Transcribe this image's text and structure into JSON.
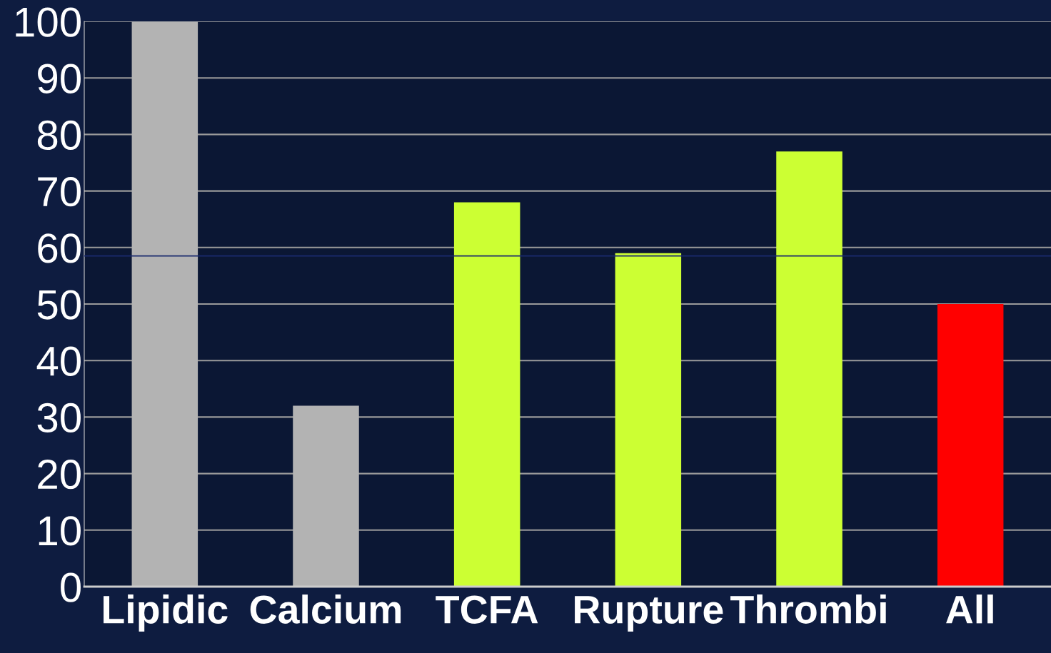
{
  "chart_data": {
    "type": "bar",
    "categories": [
      "Lipidic",
      "Calcium",
      "TCFA",
      "Rupture",
      "Thrombi",
      "All"
    ],
    "values": [
      100,
      32,
      68,
      59,
      77,
      50
    ],
    "colors": [
      "#b3b3b3",
      "#b3b3b3",
      "#ccff33",
      "#ccff33",
      "#ccff33",
      "#ff0000"
    ],
    "ylim": [
      0,
      100
    ],
    "yticks": [
      0,
      10,
      20,
      30,
      40,
      50,
      60,
      70,
      80,
      90,
      100
    ],
    "grid": "y",
    "ref_lines": [
      {
        "axis": "y",
        "value": 58.5,
        "label": null,
        "color": "#1a2a6e"
      }
    ]
  }
}
